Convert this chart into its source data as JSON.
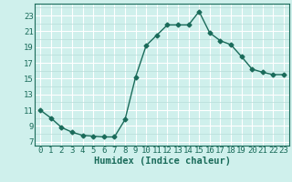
{
  "x": [
    0,
    1,
    2,
    3,
    4,
    5,
    6,
    7,
    8,
    9,
    10,
    11,
    12,
    13,
    14,
    15,
    16,
    17,
    18,
    19,
    20,
    21,
    22,
    23
  ],
  "y": [
    11,
    10,
    8.8,
    8.2,
    7.8,
    7.7,
    7.6,
    7.6,
    9.8,
    15.2,
    19.2,
    20.5,
    21.8,
    21.8,
    21.8,
    23.5,
    20.8,
    19.8,
    19.3,
    17.8,
    16.2,
    15.8,
    15.5,
    15.5
  ],
  "xlim": [
    -0.5,
    23.5
  ],
  "ylim": [
    6.5,
    24.5
  ],
  "yticks": [
    7,
    9,
    11,
    13,
    15,
    17,
    19,
    21,
    23
  ],
  "xticks": [
    0,
    1,
    2,
    3,
    4,
    5,
    6,
    7,
    8,
    9,
    10,
    11,
    12,
    13,
    14,
    15,
    16,
    17,
    18,
    19,
    20,
    21,
    22,
    23
  ],
  "xlabel": "Humidex (Indice chaleur)",
  "line_color": "#1a6b5a",
  "marker": "D",
  "marker_size": 2.5,
  "bg_color": "#cff0ec",
  "grid_major_color": "#b8ddd8",
  "grid_white_color": "#ffffff",
  "xlabel_fontsize": 7.5,
  "tick_fontsize": 6.5
}
